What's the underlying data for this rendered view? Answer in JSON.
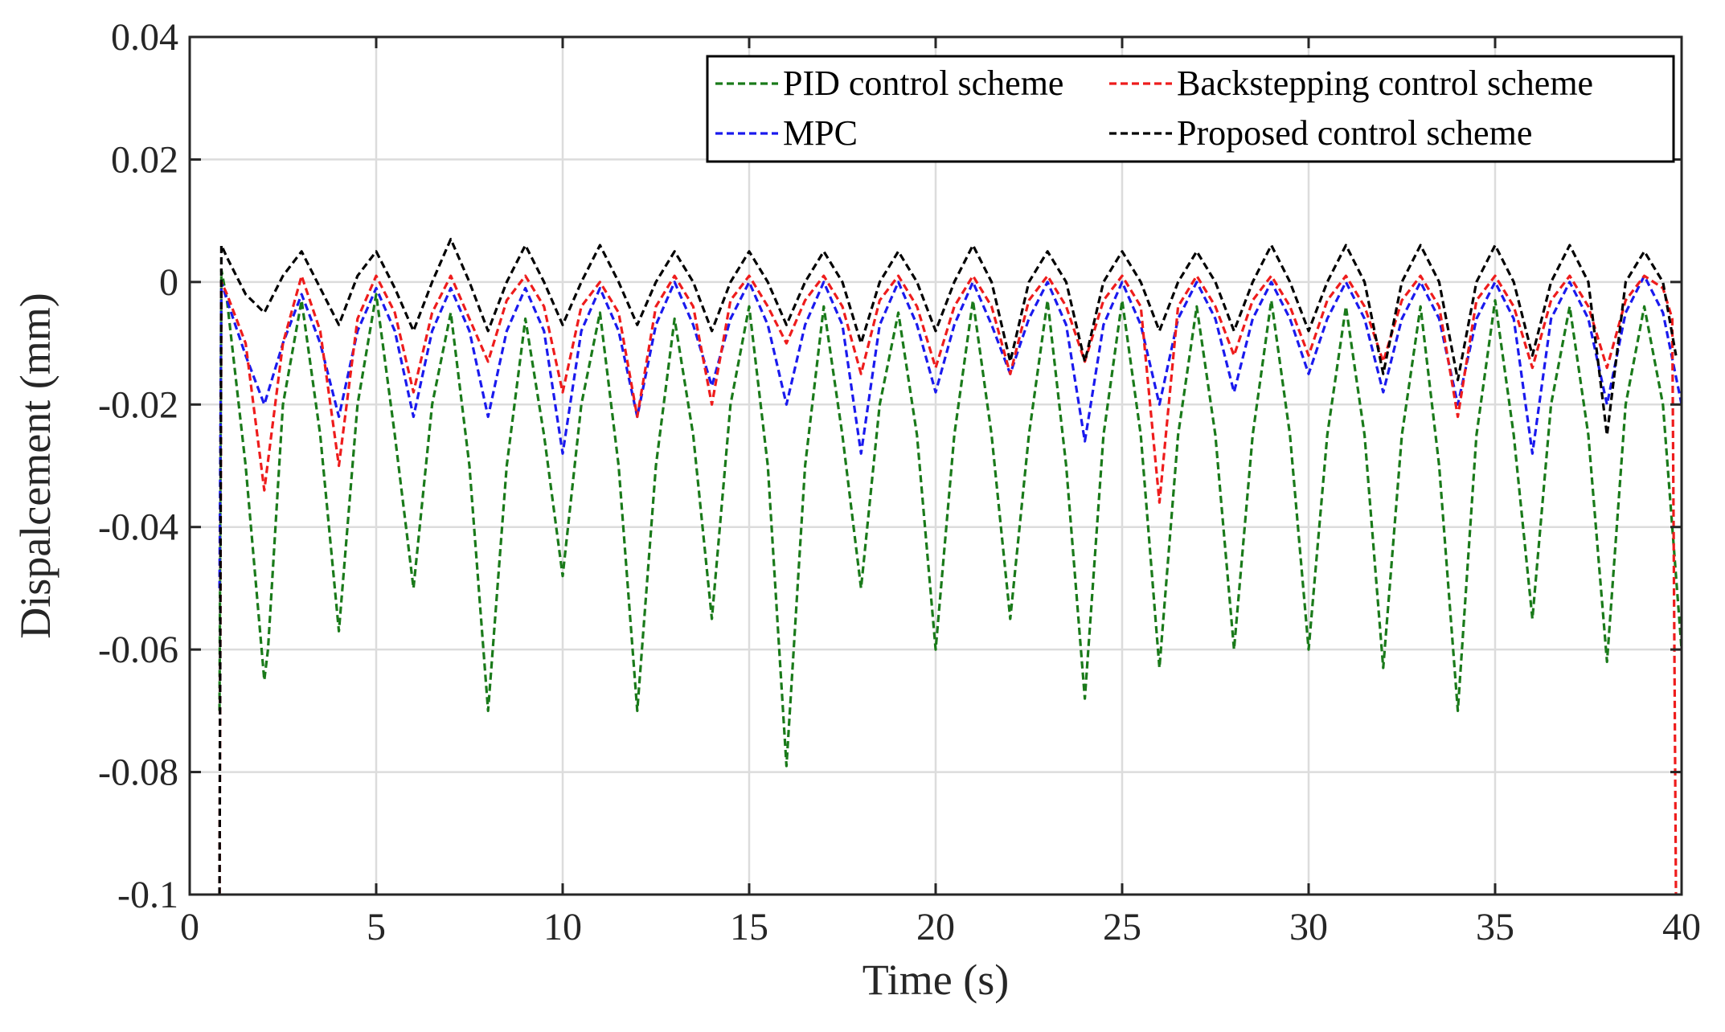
{
  "chart_data": {
    "type": "line",
    "title": "",
    "xlabel": "Time (s)",
    "ylabel": "Dispalcement (mm)",
    "xlim": [
      0,
      40
    ],
    "ylim": [
      -0.1,
      0.04
    ],
    "grid": true,
    "xticks": [
      0,
      5,
      10,
      15,
      20,
      25,
      30,
      35,
      40
    ],
    "xtick_labels": [
      "0",
      "5",
      "10",
      "15",
      "20",
      "25",
      "30",
      "35",
      "40"
    ],
    "yticks": [
      0.04,
      0.02,
      0,
      -0.02,
      -0.04,
      -0.06,
      -0.08,
      -0.1
    ],
    "ytick_labels": [
      "0.04",
      "0.02",
      "0",
      "-0.02",
      "-0.04",
      "-0.06",
      "-0.08",
      "-0.1"
    ],
    "legend_location": "top-right",
    "series": [
      {
        "name": "PID control scheme",
        "color": "#1a7a1a",
        "x": [
          0.8,
          0.85,
          1.0,
          1.5,
          2.0,
          2.1,
          2.5,
          3.0,
          3.5,
          4.0,
          4.5,
          5.0,
          5.5,
          6.0,
          6.5,
          7.0,
          7.5,
          8.0,
          8.5,
          9.0,
          9.5,
          10.0,
          10.5,
          11.0,
          11.5,
          12.0,
          12.5,
          13.0,
          13.5,
          14.0,
          14.5,
          15.0,
          15.5,
          16.0,
          16.5,
          17.0,
          17.5,
          18.0,
          18.5,
          19.0,
          19.5,
          20.0,
          20.5,
          21.0,
          21.5,
          22.0,
          22.5,
          23.0,
          23.5,
          24.0,
          24.5,
          25.0,
          25.5,
          26.0,
          26.5,
          27.0,
          27.5,
          28.0,
          28.5,
          29.0,
          29.5,
          30.0,
          30.5,
          31.0,
          31.5,
          32.0,
          32.5,
          33.0,
          33.5,
          34.0,
          34.5,
          35.0,
          35.5,
          36.0,
          36.5,
          37.0,
          37.5,
          38.0,
          38.5,
          39.0,
          39.5,
          40.0
        ],
        "y": [
          -0.07,
          0.002,
          -0.003,
          -0.03,
          -0.065,
          -0.06,
          -0.02,
          -0.003,
          -0.025,
          -0.057,
          -0.02,
          -0.002,
          -0.025,
          -0.05,
          -0.02,
          -0.005,
          -0.03,
          -0.07,
          -0.03,
          -0.006,
          -0.025,
          -0.048,
          -0.02,
          -0.005,
          -0.03,
          -0.07,
          -0.03,
          -0.006,
          -0.025,
          -0.055,
          -0.02,
          -0.004,
          -0.03,
          -0.079,
          -0.03,
          -0.004,
          -0.025,
          -0.05,
          -0.02,
          -0.005,
          -0.025,
          -0.06,
          -0.025,
          -0.003,
          -0.025,
          -0.055,
          -0.025,
          -0.003,
          -0.03,
          -0.068,
          -0.025,
          -0.003,
          -0.025,
          -0.063,
          -0.025,
          -0.004,
          -0.025,
          -0.06,
          -0.025,
          -0.003,
          -0.025,
          -0.06,
          -0.025,
          -0.004,
          -0.025,
          -0.063,
          -0.025,
          -0.004,
          -0.03,
          -0.07,
          -0.025,
          -0.003,
          -0.025,
          -0.055,
          -0.02,
          -0.004,
          -0.025,
          -0.062,
          -0.02,
          -0.004,
          -0.02,
          -0.06
        ]
      },
      {
        "name": "Backstepping control scheme",
        "color": "#ee1c1c",
        "x": [
          0.8,
          0.85,
          1.0,
          1.5,
          2.0,
          2.5,
          3.0,
          3.5,
          4.0,
          4.5,
          5.0,
          5.5,
          6.0,
          6.5,
          7.0,
          7.5,
          8.0,
          8.5,
          9.0,
          9.5,
          10.0,
          10.5,
          11.0,
          11.5,
          12.0,
          12.5,
          13.0,
          13.5,
          14.0,
          14.5,
          15.0,
          15.5,
          16.0,
          16.5,
          17.0,
          17.5,
          18.0,
          18.5,
          19.0,
          19.5,
          20.0,
          20.5,
          21.0,
          21.5,
          22.0,
          22.5,
          23.0,
          23.5,
          24.0,
          24.5,
          25.0,
          25.5,
          26.0,
          26.5,
          27.0,
          27.5,
          28.0,
          28.5,
          29.0,
          29.5,
          30.0,
          30.5,
          31.0,
          31.5,
          32.0,
          32.5,
          33.0,
          33.5,
          34.0,
          34.5,
          35.0,
          35.5,
          36.0,
          36.5,
          37.0,
          37.5,
          38.0,
          38.5,
          39.0,
          39.5,
          39.75,
          39.85
        ],
        "y": [
          -0.1,
          0.0,
          -0.002,
          -0.01,
          -0.034,
          -0.01,
          0.001,
          -0.008,
          -0.03,
          -0.006,
          0.001,
          -0.005,
          -0.018,
          -0.005,
          0.001,
          -0.006,
          -0.013,
          -0.003,
          0.001,
          -0.004,
          -0.018,
          -0.004,
          0.0,
          -0.005,
          -0.022,
          -0.004,
          0.001,
          -0.004,
          -0.02,
          -0.003,
          0.001,
          -0.004,
          -0.01,
          -0.003,
          0.001,
          -0.004,
          -0.015,
          -0.003,
          0.001,
          -0.004,
          -0.014,
          -0.004,
          0.001,
          -0.004,
          -0.015,
          -0.003,
          0.001,
          -0.004,
          -0.013,
          -0.003,
          0.001,
          -0.004,
          -0.036,
          -0.004,
          0.001,
          -0.004,
          -0.012,
          -0.003,
          0.001,
          -0.004,
          -0.012,
          -0.003,
          0.001,
          -0.004,
          -0.013,
          -0.003,
          0.001,
          -0.004,
          -0.022,
          -0.003,
          0.001,
          -0.004,
          -0.014,
          -0.003,
          0.001,
          -0.004,
          -0.014,
          -0.003,
          0.001,
          -0.001,
          -0.006,
          -0.1
        ]
      },
      {
        "name": "MPC",
        "color": "#1a1aee",
        "x": [
          0.8,
          0.85,
          1.0,
          1.5,
          2.0,
          2.5,
          3.0,
          3.5,
          4.0,
          4.5,
          5.0,
          5.5,
          6.0,
          6.5,
          7.0,
          7.5,
          8.0,
          8.5,
          9.0,
          9.5,
          10.0,
          10.5,
          11.0,
          11.5,
          12.0,
          12.5,
          13.0,
          13.5,
          14.0,
          14.5,
          15.0,
          15.5,
          16.0,
          16.5,
          17.0,
          17.5,
          18.0,
          18.5,
          19.0,
          19.5,
          20.0,
          20.5,
          21.0,
          21.5,
          22.0,
          22.5,
          23.0,
          23.5,
          24.0,
          24.5,
          25.0,
          25.5,
          26.0,
          26.5,
          27.0,
          27.5,
          28.0,
          28.5,
          29.0,
          29.5,
          30.0,
          30.5,
          31.0,
          31.5,
          32.0,
          32.5,
          33.0,
          33.5,
          34.0,
          34.5,
          35.0,
          35.5,
          36.0,
          36.5,
          37.0,
          37.5,
          38.0,
          38.5,
          39.0,
          39.5,
          40.0
        ],
        "y": [
          -0.05,
          0.0,
          -0.003,
          -0.012,
          -0.02,
          -0.01,
          -0.002,
          -0.01,
          -0.022,
          -0.008,
          -0.001,
          -0.008,
          -0.022,
          -0.008,
          -0.001,
          -0.008,
          -0.022,
          -0.008,
          -0.001,
          -0.008,
          -0.028,
          -0.008,
          -0.001,
          -0.008,
          -0.022,
          -0.007,
          0.0,
          -0.007,
          -0.017,
          -0.006,
          0.0,
          -0.007,
          -0.02,
          -0.007,
          0.0,
          -0.007,
          -0.028,
          -0.007,
          0.0,
          -0.007,
          -0.018,
          -0.007,
          0.0,
          -0.007,
          -0.015,
          -0.006,
          0.0,
          -0.007,
          -0.026,
          -0.007,
          0.0,
          -0.007,
          -0.02,
          -0.006,
          0.0,
          -0.006,
          -0.018,
          -0.006,
          0.0,
          -0.006,
          -0.015,
          -0.006,
          0.0,
          -0.006,
          -0.018,
          -0.006,
          0.0,
          -0.006,
          -0.02,
          -0.006,
          0.0,
          -0.006,
          -0.028,
          -0.006,
          0.0,
          -0.006,
          -0.02,
          -0.005,
          0.001,
          -0.005,
          -0.02
        ]
      },
      {
        "name": "Proposed control scheme",
        "color": "#000000",
        "x": [
          0.8,
          0.85,
          1.0,
          1.5,
          2.0,
          2.5,
          3.0,
          3.5,
          4.0,
          4.5,
          5.0,
          5.5,
          6.0,
          6.5,
          7.0,
          7.5,
          8.0,
          8.5,
          9.0,
          9.5,
          10.0,
          10.5,
          11.0,
          11.5,
          12.0,
          12.5,
          13.0,
          13.5,
          14.0,
          14.5,
          15.0,
          15.5,
          16.0,
          16.5,
          17.0,
          17.5,
          18.0,
          18.5,
          19.0,
          19.5,
          20.0,
          20.5,
          21.0,
          21.5,
          22.0,
          22.5,
          23.0,
          23.5,
          24.0,
          24.5,
          25.0,
          25.5,
          26.0,
          26.5,
          27.0,
          27.5,
          28.0,
          28.5,
          29.0,
          29.5,
          30.0,
          30.5,
          31.0,
          31.5,
          32.0,
          32.5,
          33.0,
          33.5,
          34.0,
          34.5,
          35.0,
          35.5,
          36.0,
          36.5,
          37.0,
          37.5,
          38.0,
          38.5,
          39.0,
          39.5,
          39.85
        ],
        "y": [
          -0.1,
          0.006,
          0.004,
          -0.002,
          -0.005,
          0.001,
          0.005,
          -0.001,
          -0.007,
          0.001,
          0.005,
          -0.001,
          -0.008,
          0.0,
          0.007,
          0.0,
          -0.008,
          0.0,
          0.006,
          0.0,
          -0.007,
          0.0,
          0.006,
          0.0,
          -0.007,
          0.0,
          0.005,
          0.0,
          -0.008,
          0.0,
          0.005,
          0.0,
          -0.007,
          0.0,
          0.005,
          0.0,
          -0.01,
          0.0,
          0.005,
          0.0,
          -0.008,
          0.0,
          0.006,
          0.0,
          -0.013,
          0.0,
          0.005,
          0.0,
          -0.013,
          0.0,
          0.005,
          0.0,
          -0.008,
          0.0,
          0.005,
          0.0,
          -0.008,
          0.0,
          0.006,
          0.0,
          -0.008,
          0.0,
          0.006,
          0.0,
          -0.015,
          0.0,
          0.006,
          0.0,
          -0.016,
          0.0,
          0.006,
          0.0,
          -0.012,
          0.0,
          0.006,
          0.0,
          -0.025,
          0.0,
          0.005,
          0.0,
          -0.012
        ]
      }
    ],
    "legend": [
      "PID control scheme",
      "Backstepping control scheme",
      "MPC",
      "Proposed control scheme"
    ]
  }
}
